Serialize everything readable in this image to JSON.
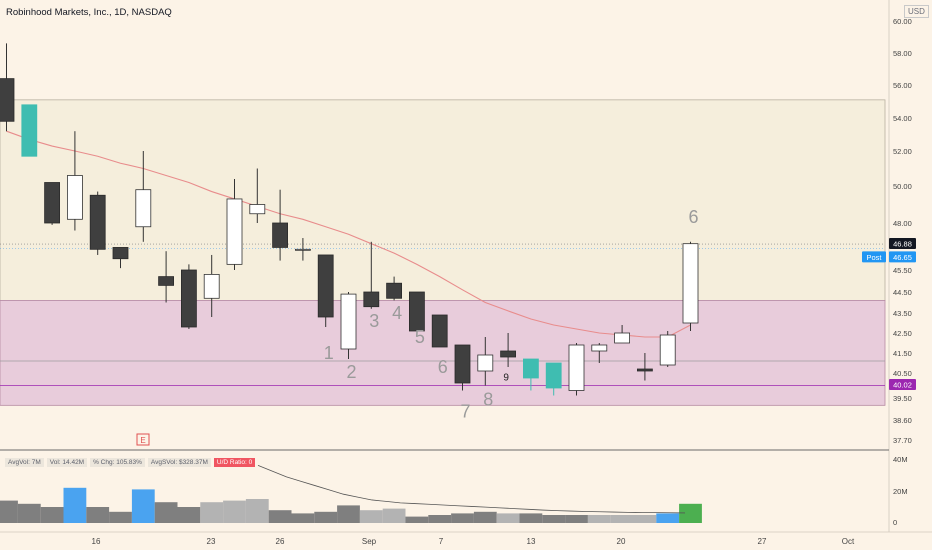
{
  "header": {
    "title": "Robinhood Markets, Inc., 1D, NASDAQ",
    "currency": "USD"
  },
  "stats": [
    {
      "label": "AvgVol: 7M"
    },
    {
      "label": "Vol: 14.42M"
    },
    {
      "label": "% Chg: 105.83%"
    },
    {
      "label": "AvgSVol: $328.37M"
    },
    {
      "label": "U/D Ratio: 0"
    }
  ],
  "price_tags": [
    {
      "label": "46.88",
      "value": 46.88,
      "style": "dark"
    },
    {
      "label": "Post",
      "value": 46.65,
      "style": "blue"
    },
    {
      "label": "46.65",
      "value": 46.65,
      "style": "blue"
    },
    {
      "label": "40.02",
      "value": 40.02,
      "style": "purple"
    }
  ],
  "earnings_marker": "E",
  "colors": {
    "background": "#fcf3e7",
    "up": "#ffffff",
    "down": "#3f3f3f",
    "teal": "#3fbdb1",
    "ma": "#e88c8c",
    "zone": "#e6c8d9",
    "volume_blue": "#4aa3f0",
    "volume_green": "#4caf50"
  },
  "chart_data": [
    {
      "type": "candlestick",
      "y_axis": {
        "ticks": [
          "60.00",
          "58.00",
          "56.00",
          "54.00",
          "52.00",
          "50.00",
          "48.00",
          "45.50",
          "44.50",
          "43.50",
          "42.50",
          "41.50",
          "40.50",
          "39.50",
          "38.60",
          "37.70"
        ],
        "range": [
          37.2,
          61.5
        ]
      },
      "x_axis": {
        "ticks": [
          "16",
          "23",
          "26",
          "Sep",
          "7",
          "13",
          "20",
          "27",
          "Oct"
        ]
      },
      "candles": [
        {
          "o": 53.8,
          "h": 58.6,
          "l": 53.2,
          "c": 56.4,
          "color": "down"
        },
        {
          "o": 54.8,
          "h": 54.8,
          "l": 51.7,
          "c": 51.7,
          "color": "teal"
        },
        {
          "o": 50.2,
          "h": 50.2,
          "l": 47.9,
          "c": 48.0,
          "color": "down"
        },
        {
          "o": 48.2,
          "h": 53.2,
          "l": 47.6,
          "c": 50.6,
          "color": "up"
        },
        {
          "o": 49.5,
          "h": 49.7,
          "l": 46.3,
          "c": 46.6,
          "color": "down"
        },
        {
          "o": 46.7,
          "h": 46.7,
          "l": 45.6,
          "c": 46.1,
          "color": "down"
        },
        {
          "o": 47.8,
          "h": 52.0,
          "l": 47.0,
          "c": 49.8,
          "color": "up"
        },
        {
          "o": 45.2,
          "h": 46.5,
          "l": 44.0,
          "c": 44.8,
          "color": "down"
        },
        {
          "o": 45.5,
          "h": 45.8,
          "l": 42.7,
          "c": 42.8,
          "color": "down"
        },
        {
          "o": 44.2,
          "h": 46.3,
          "l": 43.3,
          "c": 45.3,
          "color": "up"
        },
        {
          "o": 45.8,
          "h": 50.4,
          "l": 45.5,
          "c": 49.3,
          "color": "up"
        },
        {
          "o": 48.5,
          "h": 51.0,
          "l": 48.0,
          "c": 49.0,
          "color": "up"
        },
        {
          "o": 48.0,
          "h": 49.8,
          "l": 46.0,
          "c": 46.7,
          "color": "down"
        },
        {
          "o": 46.6,
          "h": 47.2,
          "l": 46.0,
          "c": 46.6,
          "color": "up"
        },
        {
          "o": 46.3,
          "h": 46.3,
          "l": 42.8,
          "c": 43.3,
          "color": "down"
        },
        {
          "o": 41.7,
          "h": 44.5,
          "l": 41.2,
          "c": 44.4,
          "color": "up"
        },
        {
          "o": 44.5,
          "h": 47.0,
          "l": 43.7,
          "c": 43.8,
          "color": "down"
        },
        {
          "o": 44.9,
          "h": 45.2,
          "l": 44.1,
          "c": 44.2,
          "color": "down"
        },
        {
          "o": 44.5,
          "h": 44.5,
          "l": 42.6,
          "c": 42.6,
          "color": "down"
        },
        {
          "o": 43.4,
          "h": 43.4,
          "l": 41.8,
          "c": 41.8,
          "color": "down"
        },
        {
          "o": 41.9,
          "h": 41.9,
          "l": 39.8,
          "c": 40.1,
          "color": "down"
        },
        {
          "o": 40.6,
          "h": 42.3,
          "l": 40.0,
          "c": 41.4,
          "color": "up"
        },
        {
          "o": 41.6,
          "h": 42.5,
          "l": 40.8,
          "c": 41.3,
          "color": "down"
        },
        {
          "o": 41.2,
          "h": 41.2,
          "l": 39.8,
          "c": 40.3,
          "color": "teal"
        },
        {
          "o": 41.0,
          "h": 41.0,
          "l": 39.6,
          "c": 39.9,
          "color": "teal"
        },
        {
          "o": 39.8,
          "h": 42.0,
          "l": 39.6,
          "c": 41.9,
          "color": "up"
        },
        {
          "o": 41.6,
          "h": 42.0,
          "l": 41.0,
          "c": 41.9,
          "color": "up"
        },
        {
          "o": 42.0,
          "h": 42.9,
          "l": 42.0,
          "c": 42.5,
          "color": "up"
        },
        {
          "o": 40.7,
          "h": 41.5,
          "l": 40.2,
          "c": 40.6,
          "color": "down"
        },
        {
          "o": 40.9,
          "h": 42.6,
          "l": 40.8,
          "c": 42.4,
          "color": "up"
        },
        {
          "o": 43.0,
          "h": 47.0,
          "l": 42.6,
          "c": 46.9,
          "color": "up"
        }
      ],
      "moving_average": [
        53.2,
        52.7,
        52.3,
        52.0,
        51.7,
        51.3,
        51.0,
        50.6,
        50.2,
        49.7,
        49.3,
        48.9,
        48.5,
        48.2,
        47.8,
        47.4,
        46.9,
        46.4,
        45.8,
        45.2,
        44.6,
        44.0,
        43.6,
        43.2,
        42.9,
        42.7,
        42.5,
        42.4,
        42.3,
        42.3,
        42.9
      ],
      "labels": [
        {
          "text": "1",
          "candle": 14,
          "price": 41.2
        },
        {
          "text": "2",
          "candle": 15,
          "price": 40.3
        },
        {
          "text": "3",
          "candle": 16,
          "price": 42.8
        },
        {
          "text": "4",
          "candle": 17,
          "price": 43.2
        },
        {
          "text": "5",
          "candle": 18,
          "price": 42.0
        },
        {
          "text": "6",
          "candle": 19,
          "price": 40.5
        },
        {
          "text": "7",
          "candle": 20,
          "price": 38.7
        },
        {
          "text": "8",
          "candle": 21,
          "price": 39.2
        },
        {
          "text": "9",
          "candle": 22,
          "price": 40.2
        },
        {
          "text": "6",
          "candle": 30,
          "price": 48.0
        }
      ],
      "zones": [
        {
          "from": 44.1,
          "to": 55.1,
          "color": "beige"
        },
        {
          "from": 39.2,
          "to": 44.1,
          "color": "pink"
        }
      ],
      "levels": [
        {
          "price": 41.1
        },
        {
          "price": 40.0
        }
      ]
    },
    {
      "type": "bar",
      "name": "Volume",
      "y_axis": {
        "ticks": [
          "40M",
          "20M",
          "0"
        ],
        "range": [
          0,
          44
        ]
      },
      "values": [
        14,
        12,
        10,
        22,
        10,
        7,
        21,
        13,
        10,
        13,
        14,
        15,
        8,
        6,
        7,
        11,
        8,
        9,
        4,
        5,
        6,
        7,
        6,
        6,
        5,
        5,
        5,
        5,
        5,
        6,
        12
      ],
      "colors": [
        "grey",
        "grey",
        "grey",
        "blue",
        "grey",
        "grey",
        "blue",
        "grey",
        "grey",
        "light",
        "light",
        "light",
        "grey",
        "grey",
        "grey",
        "grey",
        "light",
        "light",
        "grey",
        "grey",
        "grey",
        "grey",
        "light",
        "grey",
        "grey",
        "grey",
        "light",
        "light",
        "light",
        "blue",
        "green"
      ],
      "avg_line": [
        40,
        36,
        32,
        29,
        26,
        23,
        20,
        18,
        16,
        15,
        14,
        13.5,
        13,
        12.5,
        12,
        11.5,
        11,
        10.5,
        10,
        9.5,
        9,
        8.6,
        8.3,
        8,
        7.8,
        7.6,
        7.4,
        7.3,
        7.2,
        7.1,
        7
      ]
    }
  ]
}
